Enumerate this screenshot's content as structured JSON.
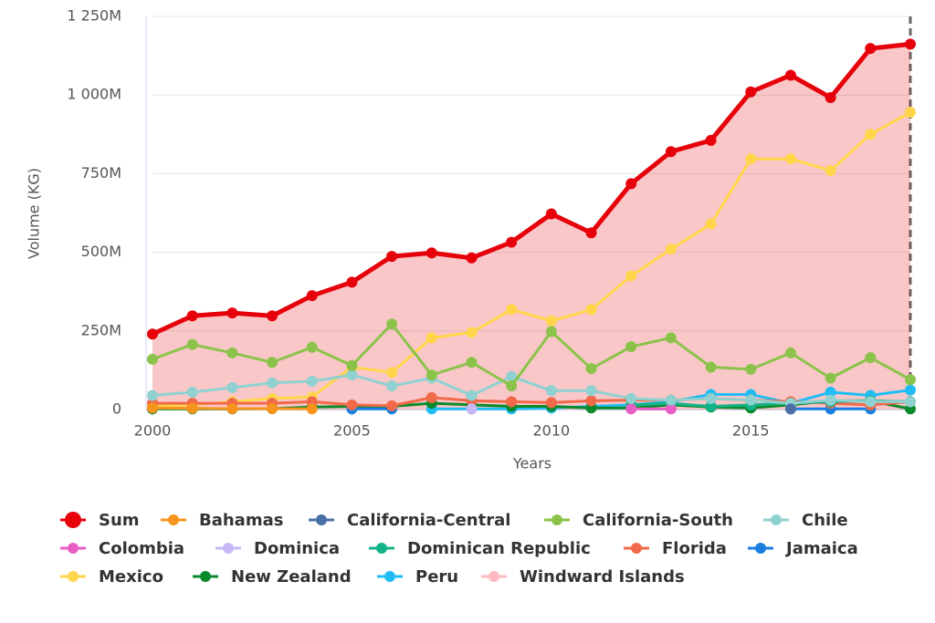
{
  "chart_data": {
    "type": "line",
    "x_label": "Years",
    "y_label": "Volume (KG)",
    "xlim": [
      2000,
      2019
    ],
    "xticks": [
      2000,
      2005,
      2010,
      2015
    ],
    "ylim": [
      0,
      1250
    ],
    "yticks": [
      0,
      {
        "value": 250,
        "label": "250M"
      },
      {
        "value": 500,
        "label": "500M"
      },
      {
        "value": 750,
        "label": "750M"
      },
      {
        "value": 1000,
        "label": "1 000M"
      },
      {
        "value": 1250,
        "label": "1 250M"
      }
    ],
    "grid": true,
    "x": [
      2000,
      2001,
      2002,
      2003,
      2004,
      2005,
      2006,
      2007,
      2008,
      2009,
      2010,
      2011,
      2012,
      2013,
      2014,
      2015,
      2016,
      2017,
      2018,
      2019
    ],
    "series": [
      {
        "name": "Sum",
        "color": "#e6000a",
        "area": true,
        "values": [
          240,
          298,
          307,
          298,
          362,
          405,
          487,
          498,
          482,
          532,
          622,
          562,
          718,
          820,
          856,
          1010,
          1063,
          992,
          1148,
          1162
        ]
      },
      {
        "name": "Bahamas",
        "color": "#f7941d",
        "values": [
          5,
          4,
          3,
          3,
          2,
          null,
          null,
          null,
          null,
          null,
          null,
          null,
          null,
          null,
          null,
          null,
          null,
          null,
          null,
          null
        ]
      },
      {
        "name": "California-Central",
        "color": "#4a6fa5",
        "values": [
          null,
          null,
          null,
          null,
          null,
          null,
          null,
          null,
          null,
          null,
          null,
          null,
          null,
          null,
          null,
          null,
          2,
          null,
          null,
          null
        ]
      },
      {
        "name": "California-South",
        "color": "#8bc34a",
        "values": [
          160,
          207,
          180,
          150,
          198,
          140,
          272,
          110,
          150,
          75,
          248,
          130,
          200,
          228,
          135,
          128,
          180,
          100,
          165,
          95
        ]
      },
      {
        "name": "Chile",
        "color": "#8fd1d1",
        "values": [
          45,
          55,
          70,
          85,
          90,
          110,
          75,
          100,
          45,
          105,
          60,
          60,
          35,
          30,
          35,
          30,
          20,
          30,
          25,
          25
        ]
      },
      {
        "name": "Colombia",
        "color": "#e85ec5",
        "values": [
          null,
          null,
          null,
          null,
          null,
          null,
          null,
          null,
          null,
          null,
          null,
          null,
          2,
          2,
          null,
          null,
          null,
          null,
          null,
          null
        ]
      },
      {
        "name": "Dominica",
        "color": "#c5b8f5",
        "values": [
          null,
          null,
          null,
          null,
          null,
          null,
          null,
          null,
          2,
          null,
          null,
          null,
          null,
          2,
          null,
          null,
          null,
          null,
          null,
          null
        ]
      },
      {
        "name": "Dominican Republic",
        "color": "#13b38a",
        "values": [
          null,
          null,
          null,
          null,
          null,
          null,
          null,
          null,
          null,
          null,
          null,
          null,
          15,
          20,
          10,
          15,
          20,
          25,
          28,
          25
        ]
      },
      {
        "name": "Florida",
        "color": "#f06a4a",
        "values": [
          20,
          20,
          20,
          20,
          25,
          15,
          12,
          38,
          28,
          25,
          22,
          28,
          30,
          30,
          35,
          30,
          25,
          20,
          15,
          25
        ]
      },
      {
        "name": "Jamaica",
        "color": "#1a7fe0",
        "values": [
          null,
          null,
          null,
          null,
          null,
          2,
          2,
          null,
          null,
          null,
          null,
          null,
          null,
          null,
          null,
          null,
          2,
          2,
          2,
          null
        ]
      },
      {
        "name": "Mexico",
        "color": "#ffd54a",
        "values": [
          10,
          15,
          25,
          35,
          40,
          135,
          118,
          228,
          245,
          318,
          282,
          318,
          425,
          510,
          590,
          797,
          797,
          760,
          875,
          945
        ]
      },
      {
        "name": "New Zealand",
        "color": "#0a8a2a",
        "values": [
          2,
          2,
          2,
          3,
          8,
          10,
          10,
          20,
          15,
          10,
          10,
          5,
          5,
          15,
          8,
          5,
          15,
          28,
          28,
          2
        ]
      },
      {
        "name": "Peru",
        "color": "#20bdf5",
        "values": [
          null,
          null,
          null,
          null,
          null,
          null,
          null,
          2,
          2,
          2,
          5,
          10,
          15,
          25,
          48,
          48,
          20,
          55,
          45,
          62
        ]
      },
      {
        "name": "Windward Islands",
        "color": "#ffb8c0",
        "values": [
          null,
          null,
          null,
          null,
          null,
          null,
          null,
          null,
          2,
          null,
          null,
          null,
          null,
          null,
          null,
          null,
          null,
          null,
          null,
          null
        ]
      }
    ]
  }
}
